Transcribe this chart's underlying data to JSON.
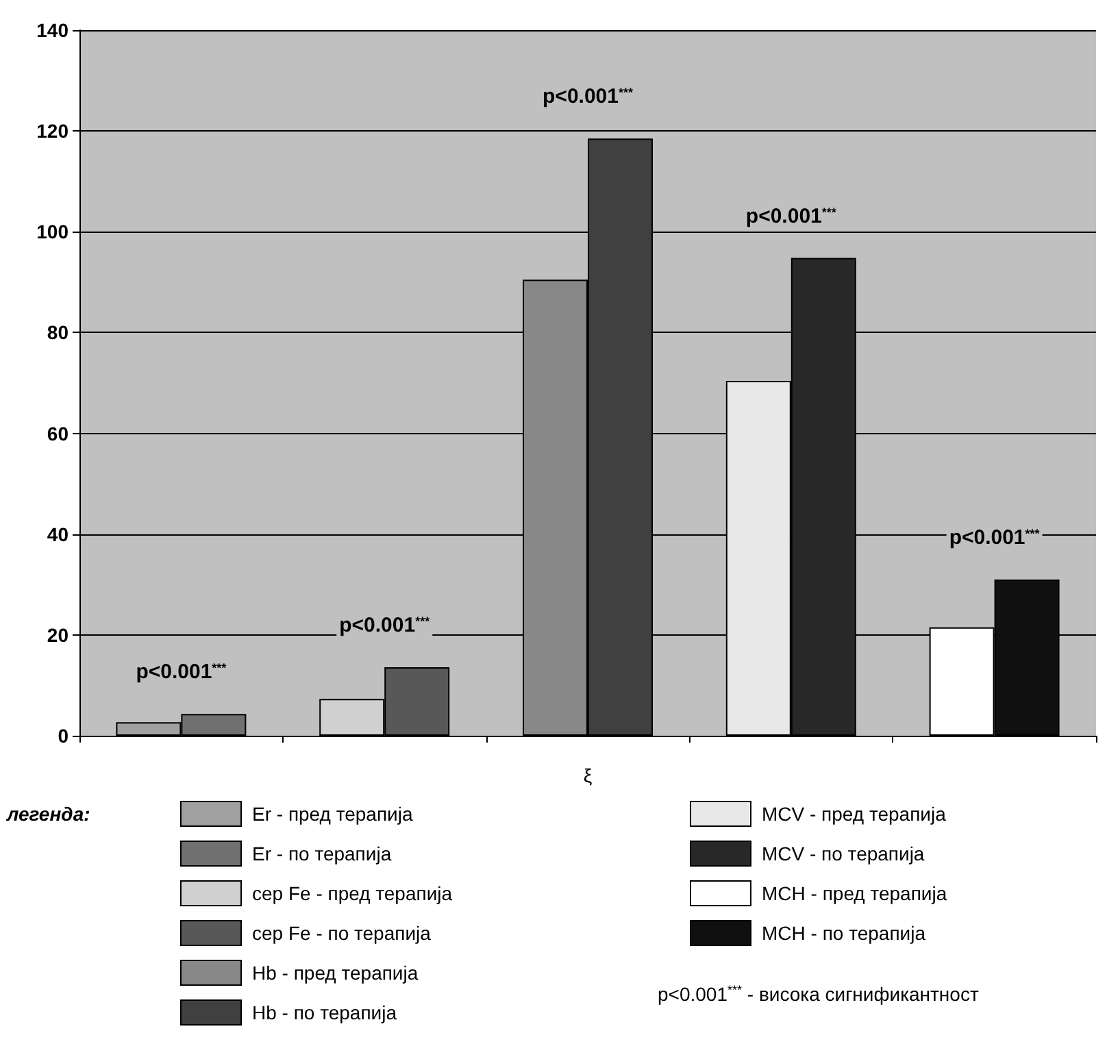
{
  "chart_data": {
    "type": "bar",
    "xlabel": "ξ",
    "legend_title": "легенда:",
    "categories": [
      null,
      null,
      null,
      null,
      null
    ],
    "series": [
      {
        "name": "Er - пред терапија",
        "color": "#a0a0a0",
        "values": [
          2.7,
          null,
          null,
          null,
          null
        ]
      },
      {
        "name": "Er - по терапија",
        "color": "#707070",
        "values": [
          4.3,
          null,
          null,
          null,
          null
        ]
      },
      {
        "name": "сер Fe - пред терапија",
        "color": "#d0d0d0",
        "values": [
          null,
          7.3,
          null,
          null,
          null
        ]
      },
      {
        "name": "сер Fe - по терапија",
        "color": "#585858",
        "values": [
          null,
          13.6,
          null,
          null,
          null
        ]
      },
      {
        "name": "Hb - пред терапија",
        "color": "#888888",
        "values": [
          null,
          null,
          90.5,
          null,
          null
        ]
      },
      {
        "name": "Hb - по терапија",
        "color": "#404040",
        "values": [
          null,
          null,
          118.5,
          null,
          null
        ]
      },
      {
        "name": "MCV - пред терапија",
        "color": "#e8e8e8",
        "values": [
          null,
          null,
          null,
          70.4,
          null
        ]
      },
      {
        "name": "MCV - по терапија",
        "color": "#282828",
        "values": [
          null,
          null,
          null,
          94.8,
          null
        ]
      },
      {
        "name": "MCH - пред терапија",
        "color": "#ffffff",
        "values": [
          null,
          null,
          null,
          null,
          21.5
        ]
      },
      {
        "name": "MCH - по терапија",
        "color": "#101010",
        "values": [
          null,
          null,
          null,
          null,
          31
        ]
      }
    ],
    "ylim": [
      0,
      140
    ],
    "yticks": [
      0,
      20,
      40,
      60,
      80,
      100,
      120,
      140
    ],
    "grid": "y",
    "legend": "bottom",
    "annotations": [
      "p<0.001$^{***}$",
      "p<0.001$^{***}$",
      "p<0.001$^{***}$",
      "p<0.001$^{***}$",
      "p<0.001$^{***}$",
      "p<0.001$^{***}$ - висока сигнификантност"
    ]
  }
}
